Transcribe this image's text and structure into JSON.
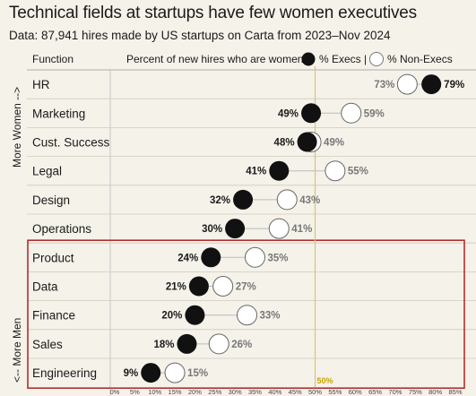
{
  "title": "Technical fields at startups have few women executives",
  "subtitle": "Data: 87,941 hires made by US startups on Carta from 2023–Nov 2024",
  "header": {
    "function_label": "Function",
    "metric_label": "Percent of new hires who are women |",
    "execs_label": "% Execs |",
    "nonexecs_label": "% Non-Execs"
  },
  "side_labels": {
    "top": "More Women -->",
    "bottom": "<-- More Men"
  },
  "reference_label": "50%",
  "colors": {
    "exec_fill": "#111111",
    "nonexec_fill": "#ffffff",
    "highlight_box": "#b03030",
    "reference_line": "#d9c27a",
    "background": "#f5f2ea"
  },
  "chart_data": {
    "type": "scatter",
    "xlim": [
      0,
      85
    ],
    "x_tick_labels": [
      "0%",
      "5%",
      "10%",
      "15%",
      "20%",
      "25%",
      "30%",
      "35%",
      "40%",
      "45%",
      "50%",
      "55%",
      "60%",
      "65%",
      "70%",
      "75%",
      "80%",
      "85%"
    ],
    "reference_value": 50,
    "categories": [
      "HR",
      "Marketing",
      "Cust. Success",
      "Legal",
      "Design",
      "Operations",
      "Product",
      "Data",
      "Finance",
      "Sales",
      "Engineering"
    ],
    "series": [
      {
        "name": "% Execs",
        "values": [
          79,
          49,
          48,
          41,
          32,
          30,
          24,
          21,
          20,
          18,
          9
        ]
      },
      {
        "name": "% Non-Execs",
        "values": [
          73,
          59,
          49,
          55,
          43,
          41,
          35,
          27,
          33,
          26,
          15
        ]
      }
    ],
    "highlighted_categories": [
      "Product",
      "Data",
      "Finance",
      "Sales",
      "Engineering"
    ]
  }
}
